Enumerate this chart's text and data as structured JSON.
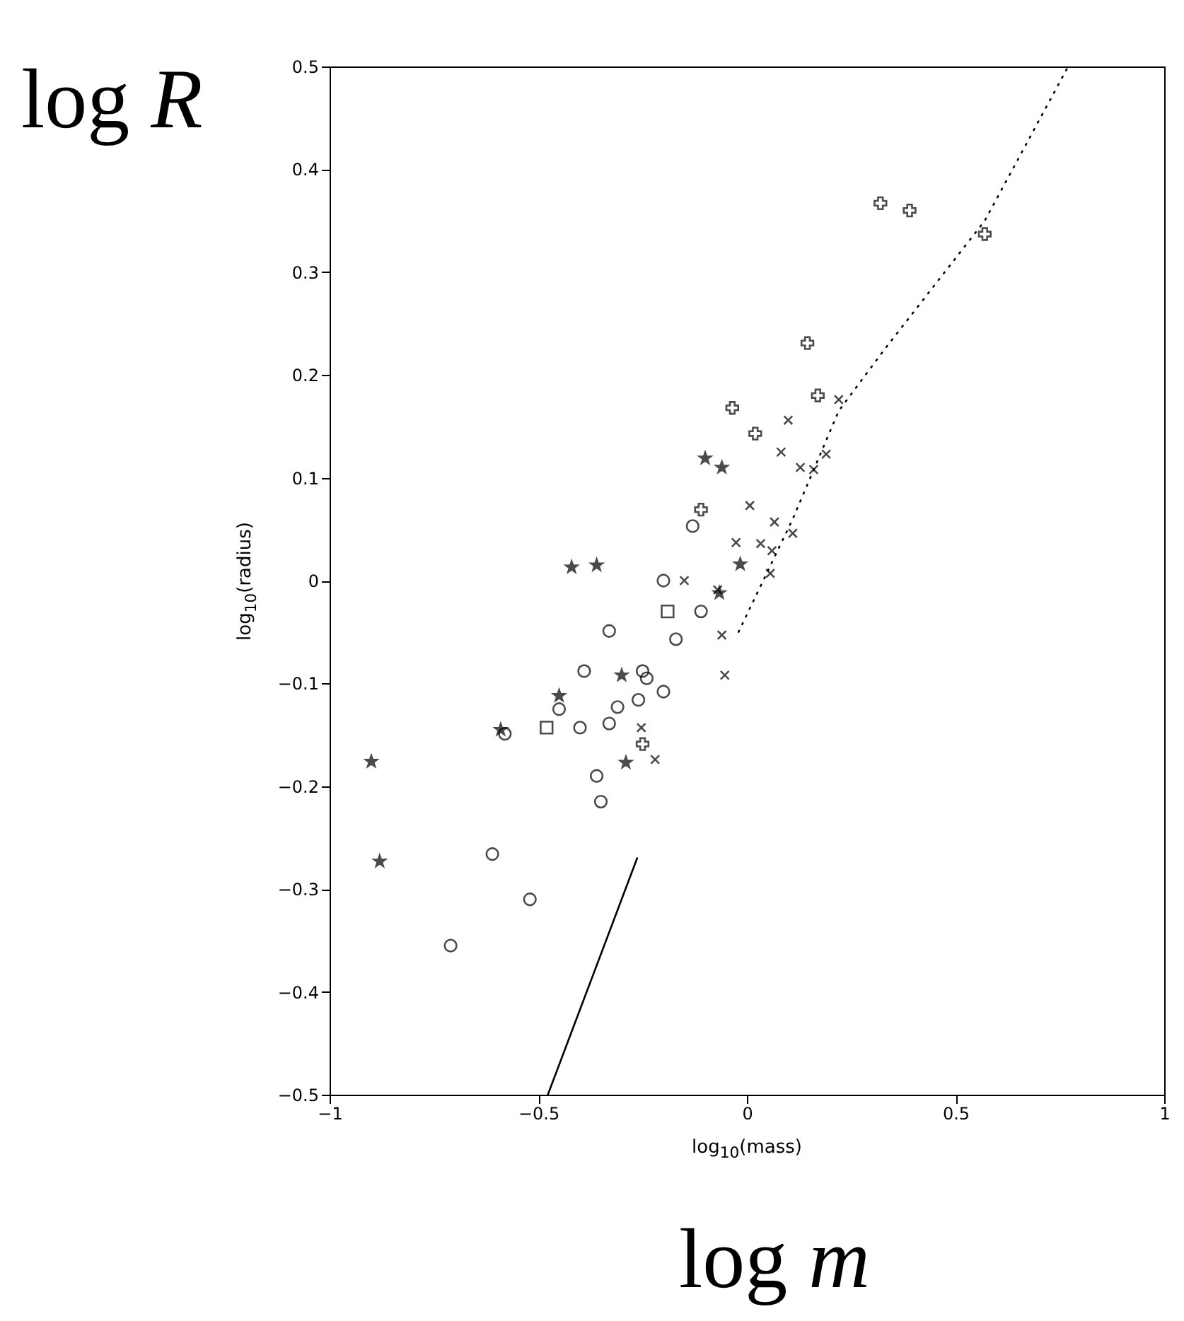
{
  "chart_data": {
    "type": "scatter",
    "xlabel": "log$_{10}$(mass)",
    "ylabel": "log$_{10}$(radius)",
    "annotations": [
      "log R",
      "log m"
    ],
    "xlim": [
      -1,
      1
    ],
    "xticks": [
      -1,
      -0.5,
      0,
      0.5,
      1
    ],
    "ylim": [
      -0.5,
      0.5
    ],
    "yticks": [
      -0.5,
      -0.4,
      -0.3,
      -0.2,
      -0.1,
      0,
      0.1,
      0.2,
      0.3,
      0.4,
      0.5
    ],
    "grid": false,
    "series": [
      {
        "marker": "plus",
        "color": "#000000",
        "x": [
          0.32,
          0.39,
          0.57,
          0.145,
          -0.035,
          0.17,
          0.02,
          -0.11,
          -0.25
        ],
        "values": [
          0.367,
          0.36,
          0.337,
          0.231,
          0.168,
          0.18,
          0.143,
          0.069,
          -0.159
        ]
      },
      {
        "marker": "star",
        "color": "#000000",
        "x": [
          -0.9,
          -0.88,
          -0.42,
          -0.36,
          -0.016,
          -0.1,
          -0.06,
          -0.45,
          -0.59,
          -0.3,
          -0.29,
          -0.066
        ],
        "values": [
          -0.176,
          -0.273,
          0.013,
          0.015,
          0.016,
          0.119,
          0.11,
          -0.112,
          -0.145,
          -0.092,
          -0.177,
          -0.012
        ]
      },
      {
        "marker": "cross",
        "color": "#000000",
        "x": [
          0.082,
          0.19,
          0.128,
          0.16,
          0.007,
          0.11,
          0.066,
          -0.026,
          0.033,
          0.06,
          0.056,
          -0.15,
          -0.07,
          -0.06,
          -0.053,
          0.22,
          0.099,
          -0.253,
          -0.22
        ],
        "values": [
          0.125,
          0.123,
          0.11,
          0.108,
          0.073,
          0.046,
          0.057,
          0.037,
          0.036,
          0.029,
          0.007,
          0,
          -0.009,
          -0.053,
          -0.092,
          0.176,
          0.156,
          -0.143,
          -0.174
        ]
      },
      {
        "marker": "circle",
        "color": "#000000",
        "x": [
          -0.13,
          -0.2,
          -0.11,
          -0.17,
          -0.33,
          -0.39,
          -0.25,
          -0.2,
          -0.26,
          -0.31,
          -0.45,
          -0.4,
          -0.33,
          -0.58,
          -0.36,
          -0.35,
          -0.24,
          -0.61,
          -0.52,
          -0.71
        ],
        "values": [
          0.053,
          0,
          -0.03,
          -0.057,
          -0.049,
          -0.088,
          -0.088,
          -0.108,
          -0.116,
          -0.123,
          -0.125,
          -0.143,
          -0.139,
          -0.149,
          -0.19,
          -0.215,
          -0.095,
          -0.266,
          -0.31,
          -0.355
        ]
      },
      {
        "marker": "square",
        "color": "#000000",
        "x": [
          -0.19,
          -0.48
        ],
        "values": [
          -0.03,
          -0.143
        ]
      },
      {
        "type": "line",
        "line_style": "dotted",
        "color": "#000000",
        "x": [
          -0.02,
          0.11,
          0.22,
          0.33,
          0.57,
          0.77
        ],
        "values": [
          -0.05,
          0.06,
          0.165,
          0.225,
          0.35,
          0.5
        ]
      },
      {
        "type": "line",
        "line_style": "solid",
        "color": "#000000",
        "x": [
          -0.477,
          -0.263
        ],
        "values": [
          -0.5,
          -0.27
        ]
      }
    ]
  }
}
